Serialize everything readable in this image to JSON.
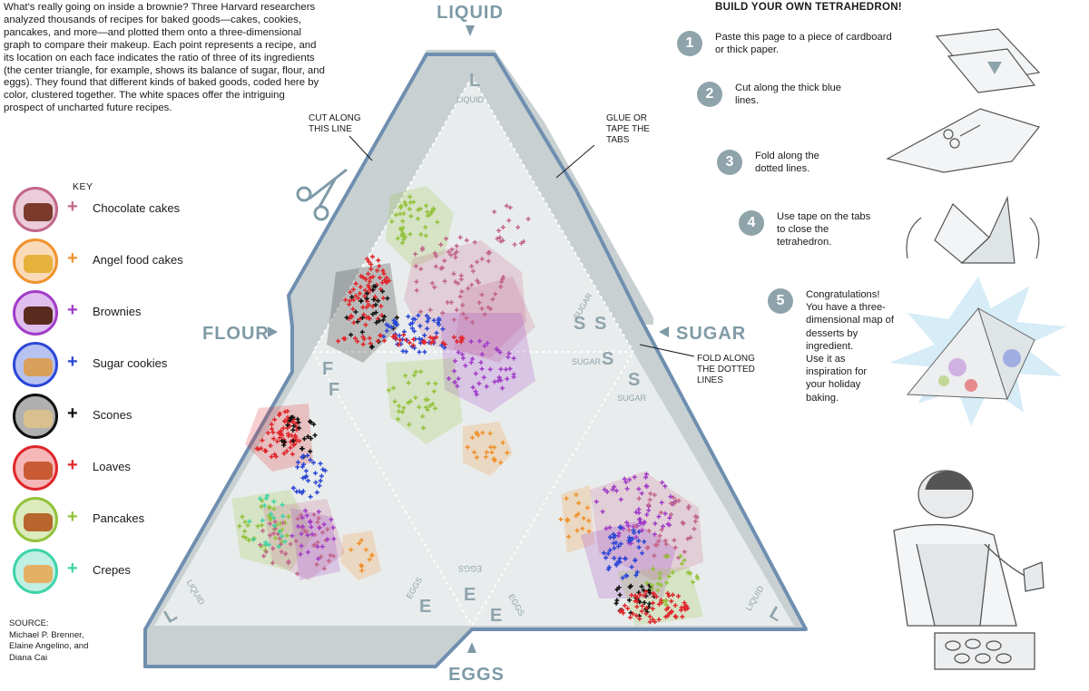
{
  "intro": "What's really going on inside a brownie? Three Harvard researchers analyzed thousands of recipes for baked goods—cakes, cookies, pancakes, and more—and plotted them onto a three-dimensional graph to compare their makeup. Each point represents a recipe, and its location on each face indicates the ratio of three of its ingredients (the center triangle, for example, shows its balance of sugar, flour, and eggs). They found that different kinds of baked goods, coded here by color, clustered together. The white spaces offer the intriguing prospect of uncharted future recipes.",
  "key": {
    "title": "KEY",
    "items": [
      {
        "label": "Chocolate cakes",
        "color": "#c2668a"
      },
      {
        "label": "Angel food cakes",
        "color": "#f0922e"
      },
      {
        "label": "Brownies",
        "color": "#a13cc8"
      },
      {
        "label": "Sugar cookies",
        "color": "#2b47d6"
      },
      {
        "label": "Scones",
        "color": "#111111"
      },
      {
        "label": "Loaves",
        "color": "#e0262a"
      },
      {
        "label": "Pancakes",
        "color": "#93c23a"
      },
      {
        "label": "Crepes",
        "color": "#3fd3a9"
      }
    ]
  },
  "source": "SOURCE:\nMichael P. Brenner,\nElaine Angelino, and\nDiana Cai",
  "diagram": {
    "corner_liquid": "LIQUID",
    "corner_flour": "FLOUR",
    "corner_sugar": "SUGAR",
    "corner_eggs": "EGGS",
    "annotation_cut": "CUT ALONG\nTHIS LINE",
    "annotation_glue": "GLUE OR\nTAPE THE\nTABS",
    "annotation_fold": "FOLD ALONG\nTHE DOTTED\nLINES",
    "letter_l": "L",
    "letter_s": "S",
    "letter_f": "F",
    "letter_e": "E",
    "word_liquid": "LIQUID",
    "word_sugar": "SUGAR",
    "word_eggs": "EGGS"
  },
  "build": {
    "title": "BUILD YOUR OWN TETRAHEDRON!",
    "steps": [
      {
        "num": "1",
        "text": "Paste this page to a piece of cardboard\nor thick paper."
      },
      {
        "num": "2",
        "text": "Cut along the thick blue lines."
      },
      {
        "num": "3",
        "text": "Fold along the\ndotted lines."
      },
      {
        "num": "4",
        "text": "Use tape on the tabs\nto close the\ntetrahedron."
      },
      {
        "num": "5",
        "text": "Congratulations!\nYou have a three-\ndimensional map of\ndesserts by\ningredient.\nUse it as\ninspiration for\nyour holiday\nbaking."
      }
    ]
  },
  "colors": {
    "face": "#e9ecec",
    "tab": "#c9d0d2",
    "cut_line": "#6f8fb0",
    "label": "#7e9aa6",
    "step_circle": "#8fa3ab"
  }
}
